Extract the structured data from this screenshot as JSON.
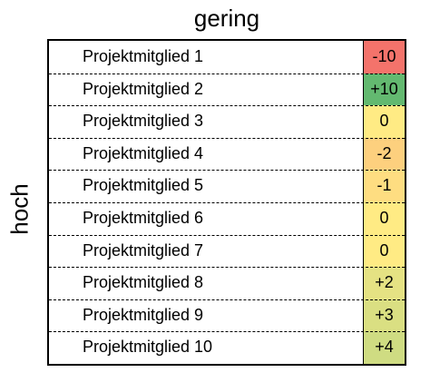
{
  "chart_data": {
    "type": "table",
    "row_axis_label": "hoch",
    "column_axis_label": "gering",
    "rows": [
      {
        "label": "Projektmitglied 1",
        "value_text": "-10",
        "value": -10,
        "color": "#f4736b"
      },
      {
        "label": "Projektmitglied 2",
        "value_text": "+10",
        "value": 10,
        "color": "#63b970"
      },
      {
        "label": "Projektmitglied 3",
        "value_text": "0",
        "value": 0,
        "color": "#ffeb84"
      },
      {
        "label": "Projektmitglied 4",
        "value_text": "-2",
        "value": -2,
        "color": "#fdd07e"
      },
      {
        "label": "Projektmitglied 5",
        "value_text": "-1",
        "value": -1,
        "color": "#fedd81"
      },
      {
        "label": "Projektmitglied 6",
        "value_text": "0",
        "value": 0,
        "color": "#ffeb84"
      },
      {
        "label": "Projektmitglied 7",
        "value_text": "0",
        "value": 0,
        "color": "#ffeb84"
      },
      {
        "label": "Projektmitglied 8",
        "value_text": "+2",
        "value": 2,
        "color": "#e5e283"
      },
      {
        "label": "Projektmitglied 9",
        "value_text": "+3",
        "value": 3,
        "color": "#dadf82"
      },
      {
        "label": "Projektmitglied 10",
        "value_text": "+4",
        "value": 4,
        "color": "#cfdc82"
      }
    ]
  }
}
